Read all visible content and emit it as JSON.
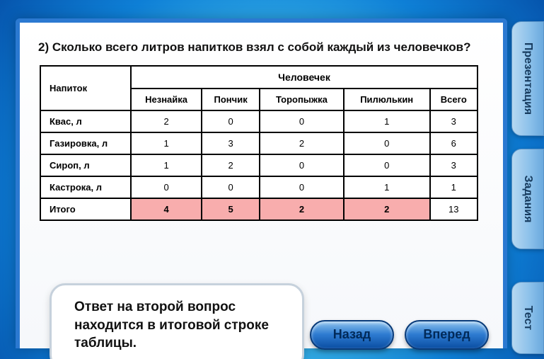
{
  "question": "2) Сколько всего литров напитков взял с собой каждый из человечков?",
  "table": {
    "corner_label": "Напиток",
    "super_header": "Человечек",
    "col_headers": [
      "Незнайка",
      "Пончик",
      "Торопыжка",
      "Пилюлькин",
      "Всего"
    ],
    "rows": [
      {
        "label": "Квас, л",
        "cells": [
          "2",
          "0",
          "0",
          "1",
          "3"
        ],
        "hl": [
          false,
          false,
          false,
          false,
          false
        ]
      },
      {
        "label": "Газировка, л",
        "cells": [
          "1",
          "3",
          "2",
          "0",
          "6"
        ],
        "hl": [
          false,
          false,
          false,
          false,
          false
        ]
      },
      {
        "label": "Сироп, л",
        "cells": [
          "1",
          "2",
          "0",
          "0",
          "3"
        ],
        "hl": [
          false,
          false,
          false,
          false,
          false
        ]
      },
      {
        "label": "Кастрока, л",
        "cells": [
          "0",
          "0",
          "0",
          "1",
          "1"
        ],
        "hl": [
          false,
          false,
          false,
          false,
          false
        ]
      },
      {
        "label": "Итого",
        "cells": [
          "4",
          "5",
          "2",
          "2",
          "13"
        ],
        "hl": [
          true,
          true,
          true,
          true,
          false
        ]
      }
    ],
    "highlight_color": "#f8adad"
  },
  "bubble_text": "Ответ на второй вопрос находится в итоговой строке таблицы.",
  "buttons": {
    "back": "Назад",
    "forward": "Вперед"
  },
  "tabs": {
    "presentation": "Презентация",
    "tasks": "Задания",
    "test": "Тест"
  },
  "style": {
    "font_family": "Arial",
    "question_fontsize": 17,
    "table_border_color": "#000000",
    "background_gradient": [
      "#7bdcf4",
      "#34aee6",
      "#0e7fd6",
      "#0655ad"
    ],
    "button_gradient": [
      "#8dc3ee",
      "#2e7bd1",
      "#0a4ea2"
    ]
  }
}
